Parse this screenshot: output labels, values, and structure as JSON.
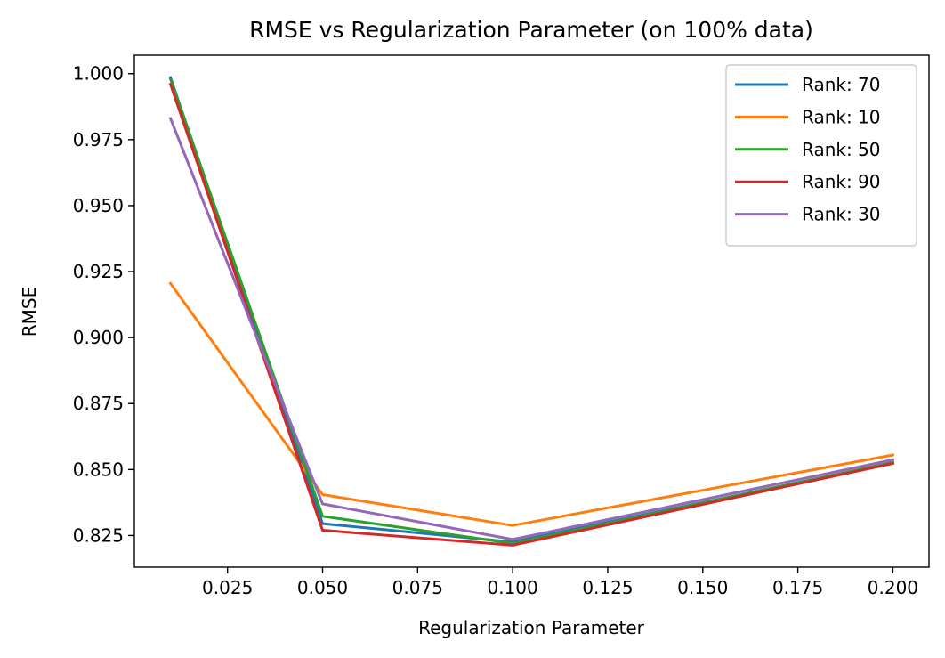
{
  "chart_data": {
    "type": "line",
    "title": "RMSE vs Regularization Parameter (on 100% data)",
    "xlabel": "Regularization Parameter",
    "ylabel": "RMSE",
    "xlim": [
      0.0005,
      0.2095
    ],
    "ylim": [
      0.813,
      1.007
    ],
    "xticks": [
      0.025,
      0.05,
      0.075,
      0.1,
      0.125,
      0.15,
      0.175,
      0.2
    ],
    "xtick_labels": [
      "0.025",
      "0.050",
      "0.075",
      "0.100",
      "0.125",
      "0.150",
      "0.175",
      "0.200"
    ],
    "yticks": [
      0.825,
      0.85,
      0.875,
      0.9,
      0.925,
      0.95,
      0.975,
      1.0
    ],
    "ytick_labels": [
      "0.825",
      "0.850",
      "0.875",
      "0.900",
      "0.925",
      "0.950",
      "0.975",
      "1.000"
    ],
    "grid": false,
    "legend_position": "top-right",
    "x": [
      0.01,
      0.05,
      0.1,
      0.2
    ],
    "series": [
      {
        "name": "Rank: 70",
        "color": "#1f77b4",
        "values": [
          0.9985,
          0.8295,
          0.8225,
          0.8525
        ]
      },
      {
        "name": "Rank: 10",
        "color": "#ff7f0e",
        "values": [
          0.9205,
          0.8405,
          0.8288,
          0.8555
        ]
      },
      {
        "name": "Rank: 50",
        "color": "#2ca02c",
        "values": [
          0.998,
          0.8323,
          0.822,
          0.8527
        ]
      },
      {
        "name": "Rank: 90",
        "color": "#d62728",
        "values": [
          0.996,
          0.827,
          0.8213,
          0.8523
        ]
      },
      {
        "name": "Rank: 30",
        "color": "#9467bd",
        "values": [
          0.983,
          0.837,
          0.8235,
          0.8537
        ]
      }
    ]
  }
}
